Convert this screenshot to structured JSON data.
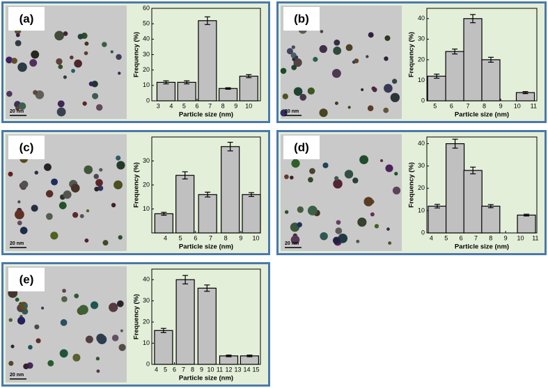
{
  "chart_data": [
    {
      "type": "bar",
      "title": "(a)",
      "scale_bar": "20 nm",
      "x_label": "Particle size (nm)",
      "y_label": "Frequency (%)",
      "x": [
        3.6,
        5.2,
        6.8,
        8.4,
        10.0
      ],
      "values": [
        12,
        12,
        52,
        8,
        16
      ],
      "errors": [
        1,
        1,
        2.5,
        0.5,
        1
      ],
      "color": "#c0c0c0",
      "xlim": [
        2.5,
        10.9
      ],
      "xticks": [
        3,
        4,
        5,
        6,
        7,
        8,
        9,
        10
      ],
      "ylim": [
        0,
        60
      ],
      "yticks": [
        0,
        10,
        20,
        30,
        40,
        50,
        60
      ]
    },
    {
      "type": "bar",
      "title": "(b)",
      "scale_bar": "20 nm",
      "x_label": "Particle size (nm)",
      "y_label": "Frequency (%)",
      "x": [
        5.1,
        6.2,
        7.3,
        8.4,
        10.5
      ],
      "values": [
        12,
        24,
        40,
        20,
        4
      ],
      "errors": [
        1,
        1.2,
        2,
        1.2,
        0.5
      ],
      "color": "#c0c0c0",
      "xlim": [
        4.5,
        11.2
      ],
      "xticks": [
        5,
        6,
        7,
        8,
        9,
        10,
        11
      ],
      "ylim": [
        0,
        45
      ],
      "yticks": [
        0,
        10,
        20,
        30,
        40
      ]
    },
    {
      "type": "bar",
      "title": "(c)",
      "scale_bar": "20 nm",
      "x_label": "Particle size (nm)",
      "y_label": "Frequency (%)",
      "x": [
        3.9,
        5.3,
        6.8,
        8.3,
        9.7
      ],
      "values": [
        8,
        24,
        16,
        36,
        16
      ],
      "errors": [
        0.6,
        1.5,
        1,
        1.8,
        0.8
      ],
      "color": "#c0c0c0",
      "xlim": [
        3.1,
        10.3
      ],
      "xticks": [
        4,
        5,
        6,
        7,
        8,
        9,
        10
      ],
      "ylim": [
        0,
        40
      ],
      "yticks": [
        10,
        20,
        30
      ]
    },
    {
      "type": "bar",
      "title": "(d)",
      "scale_bar": "20 nm",
      "x_label": "Particle size (nm)",
      "y_label": "Frequency (%)",
      "x": [
        4.4,
        5.6,
        6.8,
        8.0,
        10.4
      ],
      "values": [
        12,
        40,
        28,
        12,
        8
      ],
      "errors": [
        0.8,
        2,
        1.5,
        0.7,
        0.4
      ],
      "color": "#c0c0c0",
      "xlim": [
        3.7,
        11.1
      ],
      "xticks": [
        4,
        5,
        6,
        7,
        8,
        9,
        10,
        11
      ],
      "ylim": [
        0,
        43
      ],
      "yticks": [
        0,
        10,
        20,
        30,
        40
      ]
    },
    {
      "type": "bar",
      "title": "(e)",
      "scale_bar": "20 nm",
      "x_label": "Particle size (nm)",
      "y_label": "Frequency (%)",
      "x": [
        4.8,
        7.2,
        9.6,
        12.0,
        14.3
      ],
      "values": [
        16,
        40,
        36,
        4,
        4
      ],
      "errors": [
        1,
        2,
        1.5,
        0.4,
        0.4
      ],
      "color": "#c0c0c0",
      "xlim": [
        3.5,
        15.5
      ],
      "xticks": [
        4,
        5,
        6,
        7,
        8,
        9,
        10,
        11,
        12,
        13,
        14,
        15
      ],
      "ylim": [
        0,
        45
      ],
      "yticks": [
        0,
        10,
        20,
        30,
        40
      ]
    }
  ]
}
